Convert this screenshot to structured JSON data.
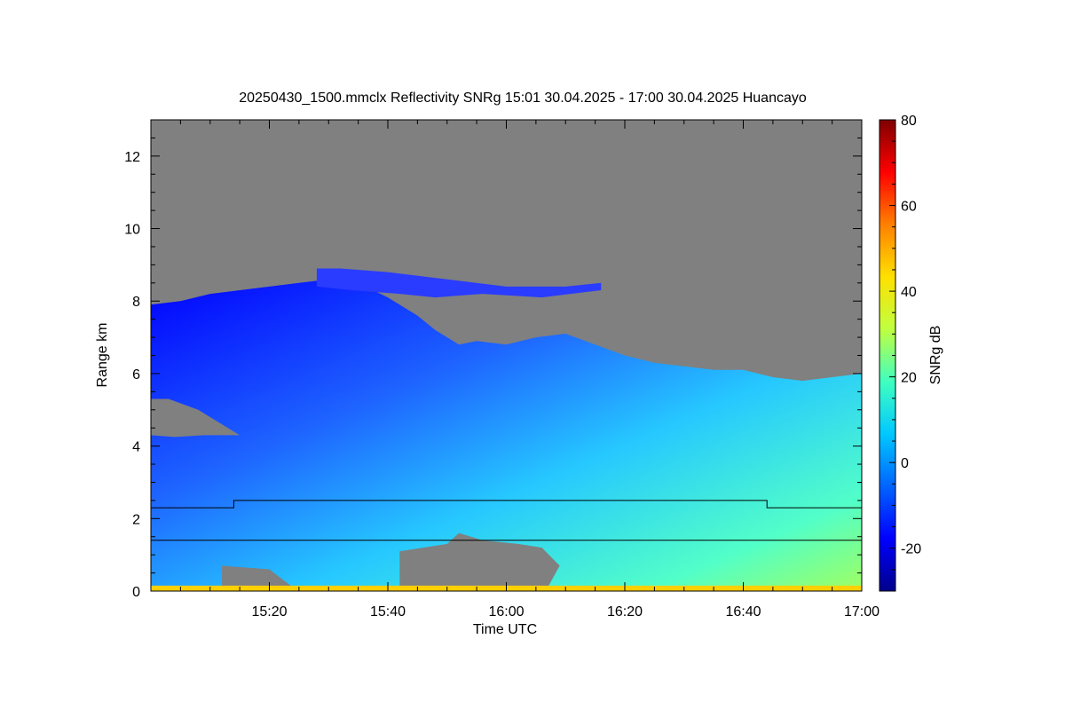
{
  "chart_data": {
    "type": "heatmap",
    "title": "20250430_1500.mmclx Reflectivity SNRg   15:01 30.04.2025 - 17:00 30.04.2025 Huancayo",
    "xlabel": "Time UTC",
    "ylabel": "Range km",
    "x_range_minutes": [
      0,
      120
    ],
    "x_ticks": [
      {
        "label": "15:20",
        "minutes": 20
      },
      {
        "label": "15:40",
        "minutes": 40
      },
      {
        "label": "16:00",
        "minutes": 60
      },
      {
        "label": "16:20",
        "minutes": 80
      },
      {
        "label": "16:40",
        "minutes": 100
      },
      {
        "label": "17:00",
        "minutes": 120
      }
    ],
    "ylim": [
      0,
      13
    ],
    "y_ticks": [
      {
        "label": "0",
        "value": 0
      },
      {
        "label": "2",
        "value": 2
      },
      {
        "label": "4",
        "value": 4
      },
      {
        "label": "6",
        "value": 6
      },
      {
        "label": "8",
        "value": 8
      },
      {
        "label": "10",
        "value": 10
      },
      {
        "label": "12",
        "value": 12
      }
    ],
    "colorbar": {
      "label": "SNRg dB",
      "range": [
        -30,
        80
      ],
      "ticks": [
        {
          "label": "-20",
          "value": -20
        },
        {
          "label": "0",
          "value": 0
        },
        {
          "label": "20",
          "value": 20
        },
        {
          "label": "40",
          "value": 40
        },
        {
          "label": "60",
          "value": 60
        },
        {
          "label": "80",
          "value": 80
        }
      ],
      "colors": [
        "#00008c",
        "#0000ff",
        "#0064ff",
        "#00c8ff",
        "#40ffc0",
        "#c0ff40",
        "#ffe000",
        "#ff8000",
        "#ff0000",
        "#800000"
      ]
    },
    "no_data_color": "#808080",
    "cloud_top": [
      [
        0,
        7.9
      ],
      [
        5,
        8.0
      ],
      [
        10,
        8.2
      ],
      [
        15,
        8.3
      ],
      [
        20,
        8.4
      ],
      [
        25,
        8.5
      ],
      [
        30,
        8.6
      ],
      [
        35,
        8.5
      ],
      [
        40,
        8.1
      ],
      [
        45,
        7.6
      ],
      [
        48,
        7.2
      ],
      [
        52,
        6.8
      ],
      [
        55,
        6.9
      ],
      [
        60,
        6.8
      ],
      [
        65,
        7.0
      ],
      [
        70,
        7.1
      ],
      [
        75,
        6.8
      ],
      [
        80,
        6.5
      ],
      [
        85,
        6.3
      ],
      [
        90,
        6.2
      ],
      [
        95,
        6.1
      ],
      [
        100,
        6.1
      ],
      [
        105,
        5.9
      ],
      [
        110,
        5.8
      ],
      [
        115,
        5.9
      ],
      [
        120,
        6.0
      ]
    ],
    "upper_layer": [
      [
        28,
        8.9
      ],
      [
        32,
        8.9
      ],
      [
        40,
        8.8
      ],
      [
        50,
        8.6
      ],
      [
        60,
        8.4
      ],
      [
        70,
        8.4
      ],
      [
        76,
        8.5
      ],
      [
        76,
        8.3
      ],
      [
        66,
        8.1
      ],
      [
        56,
        8.2
      ],
      [
        48,
        8.1
      ],
      [
        42,
        8.2
      ],
      [
        34,
        8.3
      ],
      [
        28,
        8.4
      ]
    ],
    "gap_upper_left": [
      [
        0,
        5.3
      ],
      [
        3,
        5.3
      ],
      [
        8,
        5.0
      ],
      [
        12,
        4.6
      ],
      [
        15,
        4.3
      ],
      [
        9,
        4.3
      ],
      [
        4,
        4.25
      ],
      [
        0,
        4.3
      ]
    ],
    "gap_lower": [
      [
        42,
        0.1
      ],
      [
        42,
        1.1
      ],
      [
        46,
        1.2
      ],
      [
        50,
        1.3
      ],
      [
        52,
        1.6
      ],
      [
        56,
        1.4
      ],
      [
        62,
        1.3
      ],
      [
        66,
        1.2
      ],
      [
        69,
        0.7
      ],
      [
        67,
        0.1
      ]
    ],
    "gap_bottom_left": [
      [
        12,
        0.1
      ],
      [
        12,
        0.7
      ],
      [
        20,
        0.6
      ],
      [
        24,
        0.1
      ]
    ],
    "line_upper": [
      [
        0,
        2.3
      ],
      [
        14,
        2.3
      ],
      [
        14,
        2.5
      ],
      [
        104,
        2.5
      ],
      [
        104,
        2.3
      ],
      [
        120,
        2.3
      ]
    ],
    "line_lower": [
      [
        0,
        1.4
      ],
      [
        120,
        1.4
      ]
    ]
  }
}
